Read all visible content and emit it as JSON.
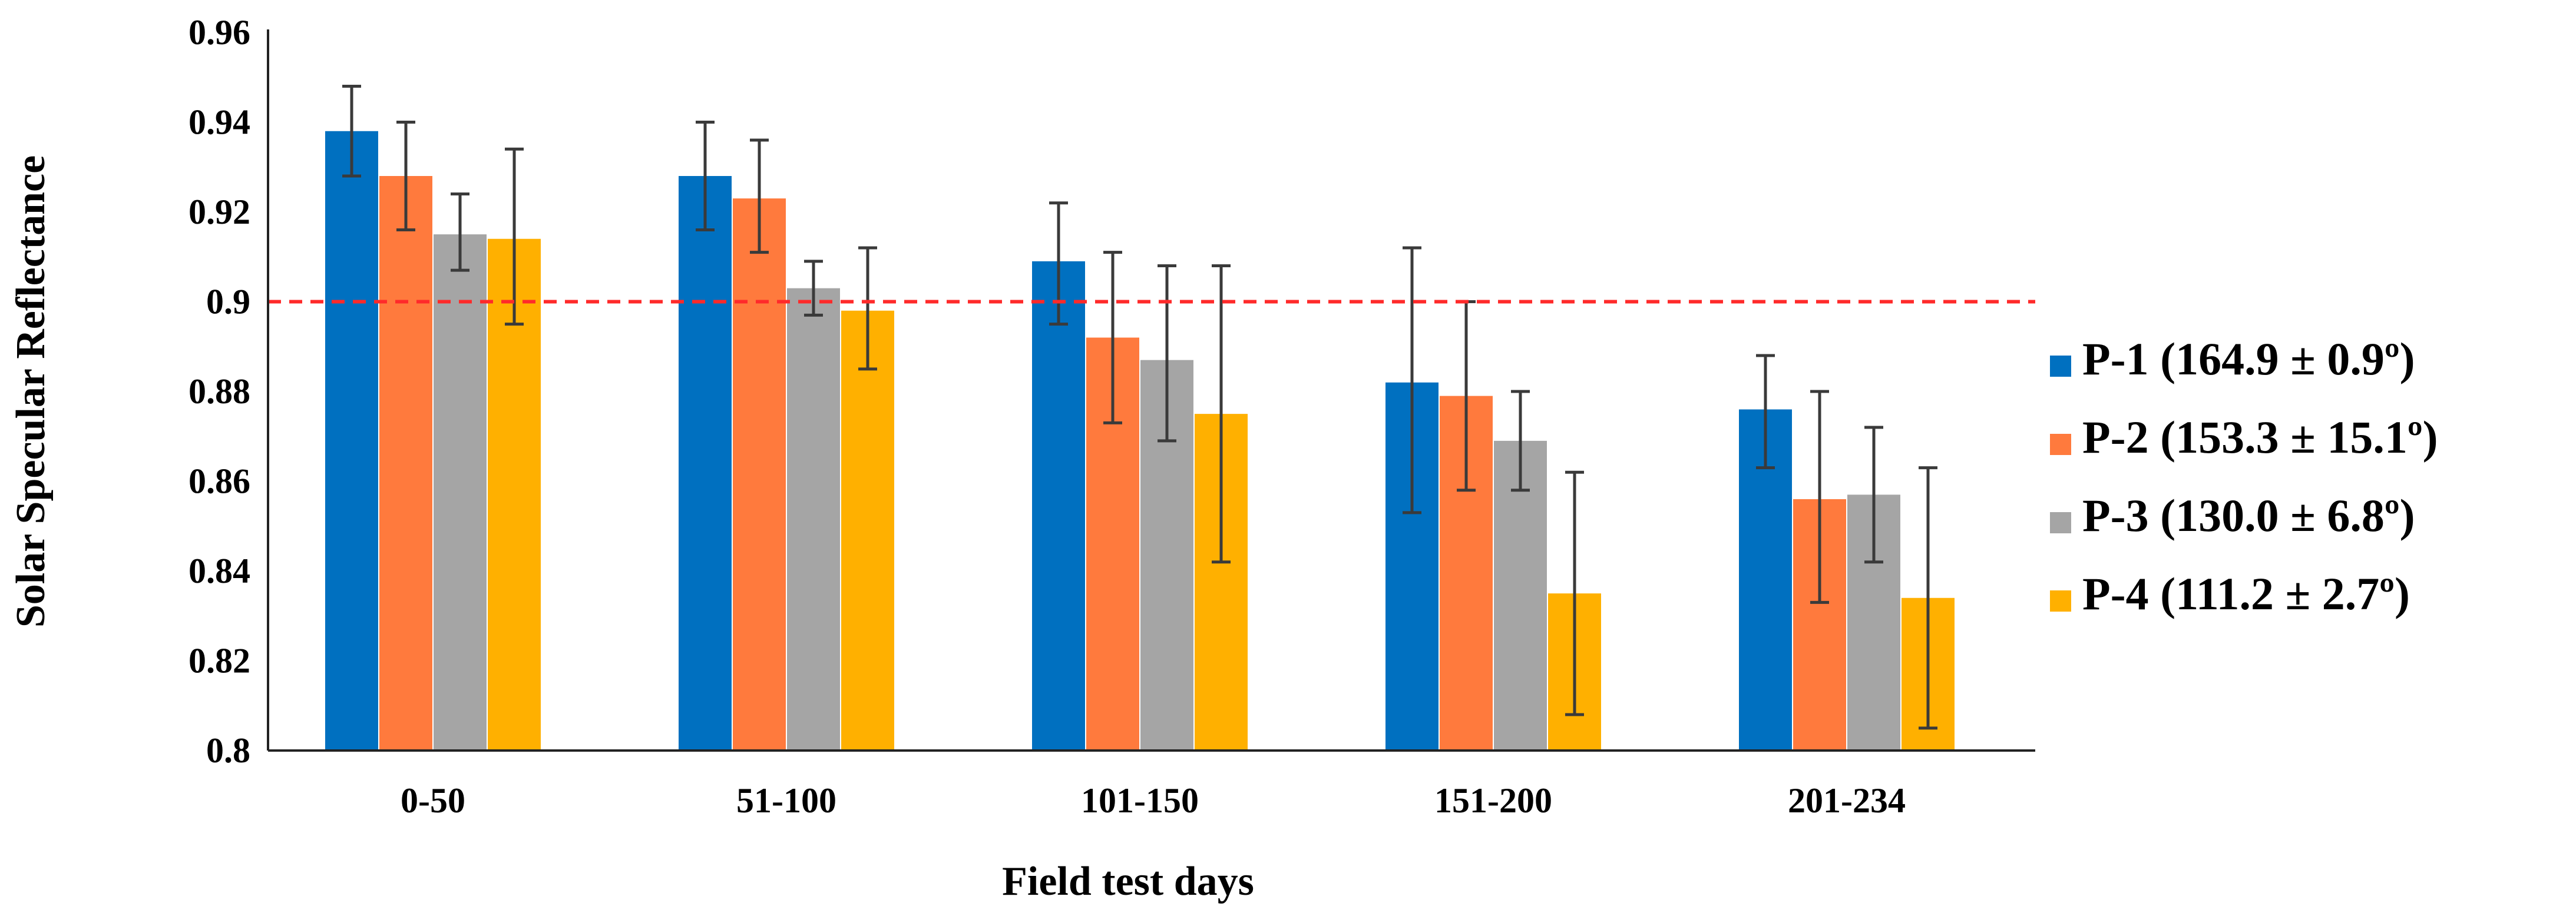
{
  "chart_data": {
    "type": "bar",
    "title": "",
    "xlabel": "Field test days",
    "ylabel": "Solar Specular Reflectance",
    "ylim": [
      0.8,
      0.96
    ],
    "yticks": [
      0.8,
      0.82,
      0.84,
      0.86,
      0.88,
      0.9,
      0.92,
      0.94,
      0.96
    ],
    "ytick_labels": [
      "0.8",
      "0.82",
      "0.84",
      "0.86",
      "0.88",
      "0.9",
      "0.92",
      "0.94",
      "0.96"
    ],
    "categories": [
      "0-50",
      "51-100",
      "101-150",
      "151-200",
      "201-234"
    ],
    "series": [
      {
        "name": "P-1 (164.9 ± 0.9º)",
        "color": "#0070C0",
        "values": [
          0.938,
          0.928,
          0.909,
          0.882,
          0.876
        ],
        "err_high": [
          0.948,
          0.94,
          0.922,
          0.912,
          0.888
        ],
        "err_low": [
          0.928,
          0.916,
          0.895,
          0.853,
          0.863
        ]
      },
      {
        "name": "P-2 (153.3 ± 15.1º)",
        "color": "#FF7A3D",
        "values": [
          0.928,
          0.923,
          0.892,
          0.879,
          0.856
        ],
        "err_high": [
          0.94,
          0.936,
          0.911,
          0.9,
          0.88
        ],
        "err_low": [
          0.916,
          0.911,
          0.873,
          0.858,
          0.833
        ]
      },
      {
        "name": "P-3 (130.0 ± 6.8º)",
        "color": "#A5A5A5",
        "values": [
          0.915,
          0.903,
          0.887,
          0.869,
          0.857
        ],
        "err_high": [
          0.924,
          0.909,
          0.908,
          0.88,
          0.872
        ],
        "err_low": [
          0.907,
          0.897,
          0.869,
          0.858,
          0.842
        ]
      },
      {
        "name": "P-4 (111.2 ± 2.7º)",
        "color": "#FFB000",
        "values": [
          0.914,
          0.898,
          0.875,
          0.835,
          0.834
        ],
        "err_high": [
          0.934,
          0.912,
          0.908,
          0.862,
          0.863
        ],
        "err_low": [
          0.895,
          0.885,
          0.842,
          0.808,
          0.805
        ]
      }
    ],
    "reference_line": {
      "value": 0.9,
      "color": "#FF2A2A",
      "style": "dashed"
    },
    "grid": false,
    "legend_position": "right"
  }
}
